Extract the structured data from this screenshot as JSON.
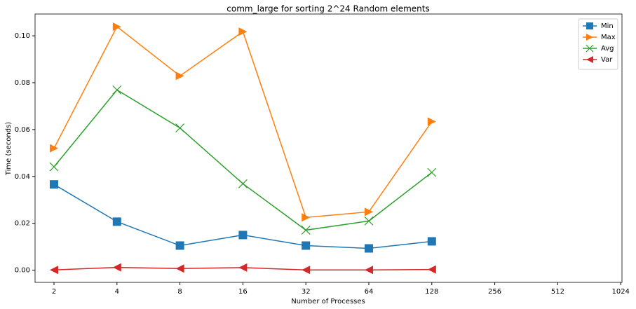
{
  "chart_data": {
    "type": "line",
    "title": "comm_large for sorting 2^24 Random elements",
    "x_label": "Number of Processes",
    "y_label": "Time (seconds)",
    "categories": [
      "2",
      "4",
      "8",
      "16",
      "32",
      "64",
      "128",
      "256",
      "512",
      "1024"
    ],
    "series": [
      {
        "name": "Min",
        "color": "#1f77b4",
        "marker": "square",
        "values": [
          0.0366,
          0.0207,
          0.0105,
          0.015,
          0.0105,
          0.0093,
          0.0123,
          null,
          null,
          null
        ]
      },
      {
        "name": "Max",
        "color": "#ff7f0e",
        "marker": "triangle-right",
        "values": [
          0.052,
          0.1039,
          0.0829,
          0.1018,
          0.0225,
          0.0249,
          0.0634,
          null,
          null,
          null
        ]
      },
      {
        "name": "Avg",
        "color": "#2ca02c",
        "marker": "x",
        "values": [
          0.0441,
          0.0769,
          0.0607,
          0.0369,
          0.0171,
          0.021,
          0.0417,
          null,
          null,
          null
        ]
      },
      {
        "name": "Var",
        "color": "#d62728",
        "marker": "triangle-left",
        "values": [
          0.0001,
          0.0012,
          0.0007,
          0.0011,
          0.0001,
          0.0001,
          0.0003,
          null,
          null,
          null
        ]
      }
    ],
    "ylim": [
      -0.0052,
      0.1093
    ],
    "yticks": [
      {
        "value": 0,
        "label": "0.00"
      },
      {
        "value": 0.02,
        "label": "0.02"
      },
      {
        "value": 0.04,
        "label": "0.04"
      },
      {
        "value": 0.06,
        "label": "0.06"
      },
      {
        "value": 0.08,
        "label": "0.08"
      },
      {
        "value": 0.1,
        "label": "0.10"
      }
    ],
    "legend": "upper right",
    "grid": false
  }
}
